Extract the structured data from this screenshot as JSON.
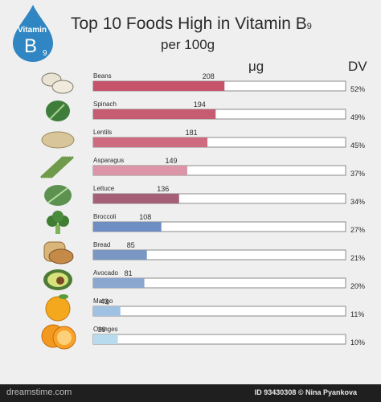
{
  "badge": {
    "top_text": "Vitamin",
    "letter": "B",
    "sub": "9"
  },
  "header": {
    "title_main": "Top 10 Foods High in Vitamin B",
    "title_sub": "9",
    "subtitle": "per 100g"
  },
  "columns": {
    "amount": "μg",
    "dv": "DV"
  },
  "colors": {
    "badge": "#2f86c2",
    "bar_track": "#ffffff",
    "bar_border": "#8a8a8a",
    "foods": [
      "#c5546a",
      "#c55c72",
      "#cf6b81",
      "#dc94a8",
      "#a55f77",
      "#6e8ec3",
      "#7a97c4",
      "#8aa7cf",
      "#9fc1e2",
      "#b9dbee"
    ]
  },
  "chart_data": {
    "type": "bar",
    "title": "Top 10 Foods High in Vitamin B9",
    "subtitle": "per 100g",
    "xlabel": "",
    "ylabel": "μg",
    "categories": [
      "Beans",
      "Spinach",
      "Lentils",
      "Asparagus",
      "Lettuce",
      "Broccoli",
      "Bread",
      "Avocado",
      "Mango",
      "Oranges"
    ],
    "values": [
      208,
      194,
      181,
      149,
      136,
      108,
      85,
      81,
      43,
      39
    ],
    "dv_percent": [
      "52%",
      "49%",
      "45%",
      "37%",
      "34%",
      "27%",
      "21%",
      "20%",
      "11%",
      "10%"
    ],
    "icons": [
      "beans-icon",
      "spinach-icon",
      "lentils-icon",
      "asparagus-icon",
      "lettuce-icon",
      "broccoli-icon",
      "bread-icon",
      "avocado-icon",
      "mango-icon",
      "oranges-icon"
    ],
    "xlim": [
      0,
      400
    ],
    "grid": false,
    "legend": "none"
  },
  "footer": {
    "logo": "dreamstime.com",
    "credit": "ID 93430308 © Nina Pyankova"
  }
}
